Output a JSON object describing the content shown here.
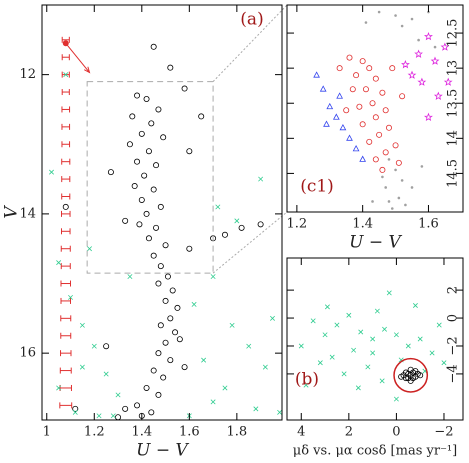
{
  "chart_data": [
    {
      "type": "scatter",
      "label": "(a)",
      "x_label": "U − V",
      "y_label": "V",
      "xlim": [
        0.98,
        1.99
      ],
      "ylim": [
        16.96,
        11.0
      ],
      "xticks": [
        1,
        1.2,
        1.4,
        1.6,
        1.8
      ],
      "yticks": [
        12,
        14,
        16
      ],
      "series": [
        {
          "marker": "circle",
          "color": "#000000",
          "x": [
            1.45,
            1.52,
            1.38,
            1.42,
            1.47,
            1.36,
            1.44,
            1.4,
            1.49,
            1.35,
            1.43,
            1.38,
            1.46,
            1.41,
            1.37,
            1.45,
            1.4,
            1.48,
            1.42,
            1.39,
            1.46,
            1.43,
            1.5,
            1.45,
            1.48,
            1.51,
            1.47,
            1.53,
            1.5,
            1.55,
            1.52,
            1.48,
            1.54,
            1.5,
            1.47,
            1.52,
            1.45,
            1.49,
            1.42,
            1.47,
            1.38,
            1.44,
            1.33,
            1.4,
            1.3,
            1.58,
            1.65,
            1.27,
            1.75,
            1.82,
            1.7,
            1.9,
            1.6,
            1.33,
            1.56,
            1.58,
            1.08,
            1.12,
            1.6,
            1.25
          ],
          "y": [
            11.6,
            11.9,
            12.3,
            12.35,
            12.5,
            12.6,
            12.7,
            12.85,
            12.9,
            13.0,
            13.1,
            13.25,
            13.3,
            13.45,
            13.6,
            13.65,
            13.8,
            13.9,
            14.0,
            14.15,
            14.2,
            14.35,
            14.45,
            14.6,
            14.75,
            14.9,
            15.0,
            15.1,
            15.25,
            15.35,
            15.5,
            15.6,
            15.7,
            15.85,
            16.0,
            16.1,
            16.25,
            16.35,
            16.5,
            16.6,
            16.75,
            16.85,
            16.8,
            16.9,
            16.92,
            12.2,
            12.6,
            13.4,
            14.3,
            14.2,
            14.35,
            14.15,
            14.5,
            14.1,
            15.8,
            16.2,
            13.9,
            16.8,
            13.1,
            15.9
          ]
        },
        {
          "marker": "cross",
          "color": "#2ecc8f",
          "x": [
            1.02,
            1.05,
            1.1,
            1.15,
            1.2,
            1.25,
            1.3,
            1.05,
            1.12,
            1.62,
            1.7,
            1.78,
            1.85,
            1.92,
            1.75,
            1.88,
            1.66,
            1.95,
            1.6,
            1.22,
            1.35,
            1.08,
            1.8,
            1.9,
            1.72,
            1.18,
            1.98,
            1.28,
            1.15,
            1.7
          ],
          "y": [
            13.4,
            14.7,
            15.2,
            15.6,
            15.9,
            16.3,
            16.6,
            16.5,
            16.85,
            15.3,
            14.9,
            15.6,
            15.9,
            16.2,
            16.5,
            16.8,
            16.1,
            15.5,
            16.9,
            16.9,
            14.9,
            12.0,
            14.1,
            13.5,
            13.9,
            14.5,
            16.85,
            16.9,
            16.2,
            16.7
          ]
        }
      ],
      "errorbars": {
        "color": "#e03030",
        "x": 1.08,
        "y": [
          11.5,
          11.75,
          12.0,
          12.25,
          12.5,
          12.75,
          13.0,
          13.25,
          13.5,
          13.75,
          14.0,
          14.25,
          14.5,
          14.75,
          15.0,
          15.25,
          15.5,
          15.75,
          16.0,
          16.25,
          16.5,
          16.75
        ],
        "xerr": [
          0.015,
          0.015,
          0.015,
          0.015,
          0.016,
          0.016,
          0.016,
          0.017,
          0.017,
          0.017,
          0.018,
          0.018,
          0.019,
          0.019,
          0.02,
          0.02,
          0.021,
          0.021,
          0.022,
          0.023,
          0.024,
          0.025
        ]
      },
      "arrow": {
        "color": "#e03030",
        "x": [
          1.08,
          1.18
        ],
        "y": [
          11.55,
          11.97
        ]
      },
      "zoom_box": {
        "x": [
          1.17,
          1.7
        ],
        "y": [
          12.1,
          14.85
        ]
      }
    },
    {
      "type": "scatter",
      "label": "(c1)",
      "x_label": "U − V",
      "xlim": [
        1.17,
        1.705
      ],
      "ylim": [
        15.05,
        12.1
      ],
      "xticks": [
        1.2,
        1.4,
        1.6
      ],
      "yticks": [
        12.5,
        13,
        13.5,
        14,
        14.5
      ],
      "series": [
        {
          "marker": "dot",
          "color": "#a0a0a0",
          "x": [
            1.45,
            1.5,
            1.52,
            1.55,
            1.6,
            1.48,
            1.5,
            1.52,
            1.47,
            1.51,
            1.49,
            1.53,
            1.46,
            1.55,
            1.43,
            1.57,
            1.62,
            1.41,
            1.58,
            1.48
          ],
          "y": [
            12.2,
            12.25,
            12.4,
            12.3,
            12.2,
            14.3,
            14.45,
            14.6,
            14.7,
            14.85,
            15.0,
            14.95,
            14.55,
            14.7,
            14.9,
            12.6,
            12.7,
            12.35,
            14.4,
            14.9
          ]
        },
        {
          "marker": "triangle",
          "color": "#3344ee",
          "x": [
            1.26,
            1.28,
            1.3,
            1.32,
            1.34,
            1.36,
            1.38,
            1.4,
            1.29,
            1.33
          ],
          "y": [
            13.1,
            13.3,
            13.55,
            13.7,
            13.85,
            14.0,
            14.15,
            14.3,
            13.8,
            13.4
          ]
        },
        {
          "marker": "circle",
          "color": "#e03030",
          "x": [
            1.36,
            1.4,
            1.42,
            1.38,
            1.44,
            1.41,
            1.46,
            1.43,
            1.39,
            1.47,
            1.44,
            1.4,
            1.48,
            1.45,
            1.42,
            1.5,
            1.47,
            1.44,
            1.51,
            1.37,
            1.35,
            1.52,
            1.33,
            1.49,
            1.46
          ],
          "y": [
            12.85,
            12.9,
            13.0,
            13.1,
            13.15,
            13.3,
            13.35,
            13.5,
            13.55,
            13.6,
            13.7,
            13.8,
            13.85,
            13.95,
            14.05,
            14.1,
            14.2,
            14.3,
            14.35,
            13.3,
            13.6,
            13.4,
            13.0,
            13.0,
            14.45
          ]
        },
        {
          "marker": "star",
          "color": "#dd22dd",
          "x": [
            1.6,
            1.62,
            1.65,
            1.58,
            1.63,
            1.55,
            1.6,
            1.66,
            1.57,
            1.53
          ],
          "y": [
            12.55,
            12.9,
            12.7,
            13.2,
            13.4,
            13.1,
            13.7,
            13.2,
            12.8,
            12.95
          ]
        }
      ]
    },
    {
      "type": "scatter",
      "label": "(b)",
      "x_label": "μδ vs. μα cosδ [mas yr⁻¹]",
      "xlim": [
        4.6,
        -2.8
      ],
      "ylim": [
        -7.3,
        4.3
      ],
      "xticks": [
        4,
        2,
        0,
        {
          "value": -2,
          "label": "−2"
        }
      ],
      "yticks": [
        2,
        0,
        {
          "value": -2,
          "label": "−2"
        },
        {
          "value": -4,
          "label": "−4"
        }
      ],
      "series": [
        {
          "marker": "cross",
          "color": "#2ecc8f",
          "x": [
            3.0,
            2.5,
            2.0,
            1.5,
            1.0,
            0.5,
            0,
            -0.5,
            -1.0,
            -1.5,
            1.8,
            2.7,
            3.5,
            0.8,
            -0.2,
            1.2,
            2.2,
            3.2,
            -1.8,
            0.3,
            4.0,
            -1.2,
            0.6,
            1.6,
            -0.8,
            2.9,
            -2.0,
            0.0,
            3.8,
            1.0
          ],
          "y": [
            -1.2,
            -0.5,
            0.2,
            -1.0,
            -1.5,
            -0.8,
            -1.2,
            -2.0,
            -1.5,
            -2.5,
            -2.3,
            -2.8,
            -0.2,
            0.5,
            -3.0,
            -3.5,
            -4.0,
            -3.2,
            -0.5,
            1.8,
            -2.0,
            -3.8,
            -4.5,
            -5.0,
            0.9,
            0.8,
            -3.2,
            -5.8,
            -4.8,
            -2.5
          ]
        },
        {
          "marker": "circle",
          "color": "#000000",
          "x": [
            -0.6,
            -0.4,
            -0.8,
            -0.5,
            -0.7,
            -0.3,
            -0.9,
            -0.6,
            -0.6,
            -0.4,
            -0.8,
            -0.5,
            -0.7,
            -0.2,
            -1.0
          ],
          "y": [
            -4.1,
            -3.9,
            -4.2,
            -4.3,
            -3.9,
            -4.1,
            -4.0,
            -3.7,
            -4.5,
            -4.3,
            -3.8,
            -4.0,
            -4.3,
            -4.2,
            -4.1
          ]
        }
      ],
      "selection_circle": {
        "color": "#cc2222",
        "x": -0.6,
        "y": -4.1,
        "r": 0.7
      }
    }
  ]
}
